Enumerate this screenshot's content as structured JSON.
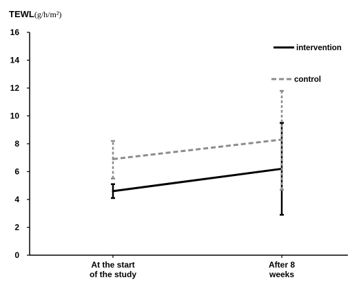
{
  "chart_data": {
    "type": "line",
    "ylabel_main": "TEWL",
    "ylabel_unit": "(g/h/m²)",
    "categories": [
      "At the start\nof the study",
      "After 8\nweeks"
    ],
    "ylim": [
      0,
      16
    ],
    "yticks": [
      0,
      2,
      4,
      6,
      8,
      10,
      12,
      14,
      16
    ],
    "grid": false,
    "legend_position": "top-right",
    "series": [
      {
        "name": "intervention",
        "values": [
          4.6,
          6.2
        ],
        "error_low": [
          4.1,
          2.9
        ],
        "error_high": [
          5.1,
          9.5
        ],
        "color": "#000000",
        "dash": "solid"
      },
      {
        "name": "control",
        "values": [
          6.9,
          8.3
        ],
        "error_low": [
          5.5,
          4.7
        ],
        "error_high": [
          8.2,
          11.8
        ],
        "color": "#8c8c8c",
        "dash": "dashed"
      }
    ]
  }
}
